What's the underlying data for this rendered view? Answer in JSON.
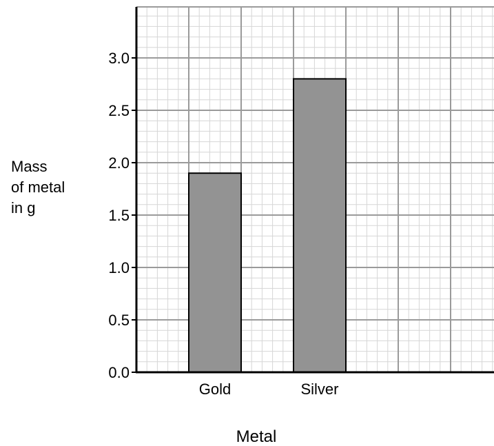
{
  "chart_data": {
    "type": "bar",
    "categories": [
      "Gold",
      "Silver"
    ],
    "values": [
      1.9,
      2.8
    ],
    "xlabel": "Metal",
    "ylabel_lines": [
      "Mass",
      "of metal",
      "in g"
    ],
    "ylim": [
      0,
      3.5
    ],
    "yticks": [
      "0.0",
      "0.5",
      "1.0",
      "1.5",
      "2.0",
      "2.5",
      "3.0"
    ],
    "grid": true,
    "bar_color": "#939393",
    "grid_major_color": "#9a9a9a",
    "grid_minor_color": "#d6d6d6"
  }
}
